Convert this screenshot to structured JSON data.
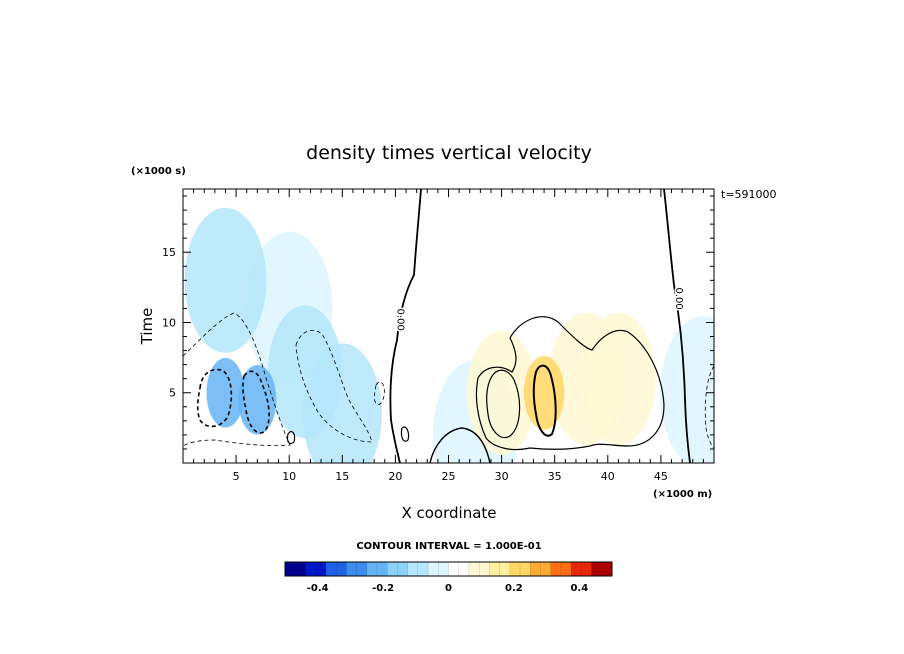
{
  "chart_data": {
    "type": "heatmap",
    "title": "density times vertical velocity",
    "xlabel": "X coordinate",
    "ylabel": "Time",
    "x_unit": "(×1000 m)",
    "y_unit": "(×1000 s)",
    "time_stamp": "t=591000",
    "xlim": [
      0,
      50
    ],
    "ylim": [
      0,
      19.5
    ],
    "x_ticks": [
      5,
      10,
      15,
      20,
      25,
      30,
      35,
      40,
      45
    ],
    "y_ticks": [
      5,
      10,
      15
    ],
    "x_tick_labels": [
      "5",
      "10",
      "15",
      "20",
      "25",
      "30",
      "35",
      "40",
      "45"
    ],
    "y_tick_labels": [
      "5",
      "10",
      "15"
    ],
    "contour_interval_text": "CONTOUR INTERVAL = 1.000E-01",
    "contour_labels": [
      {
        "text": "0.00",
        "x": 20.2,
        "y": 10.2
      },
      {
        "text": "0.00",
        "x": 46.4,
        "y": 11.7
      }
    ],
    "color_scale": {
      "min": -0.5,
      "max": 0.5,
      "ticks": [
        -0.4,
        -0.2,
        0,
        0.2,
        0.4
      ],
      "tick_labels": [
        "-0.4",
        "-0.2",
        "0",
        "0.2",
        "0.4"
      ],
      "colors": [
        "#00008f",
        "#0018c8",
        "#1e60e6",
        "#3c8cf0",
        "#64b4f5",
        "#8cd2fa",
        "#b4e6fc",
        "#dcf5ff",
        "#ffffff",
        "#fff8d2",
        "#fff0a0",
        "#ffd764",
        "#ffaa32",
        "#ff6e14",
        "#e6280a",
        "#aa0000"
      ]
    },
    "features": [
      {
        "x": 4.0,
        "y": 5.0,
        "value": -0.25
      },
      {
        "x": 7.0,
        "y": 4.5,
        "value": -0.25
      },
      {
        "x": 11.5,
        "y": 6.5,
        "value": -0.1
      },
      {
        "x": 15.0,
        "y": 3.5,
        "value": -0.08
      },
      {
        "x": 4.0,
        "y": 13.0,
        "value": -0.07
      },
      {
        "x": 10.0,
        "y": 11.0,
        "value": -0.05
      },
      {
        "x": 30.0,
        "y": 5.0,
        "value": 0.12
      },
      {
        "x": 34.0,
        "y": 5.0,
        "value": 0.24
      },
      {
        "x": 38.0,
        "y": 6.0,
        "value": 0.1
      },
      {
        "x": 41.0,
        "y": 6.0,
        "value": 0.1
      },
      {
        "x": 32.0,
        "y": 12.0,
        "value": 0.05
      },
      {
        "x": 27.5,
        "y": 2.0,
        "value": -0.06
      },
      {
        "x": 49.0,
        "y": 5.0,
        "value": -0.05
      }
    ]
  }
}
